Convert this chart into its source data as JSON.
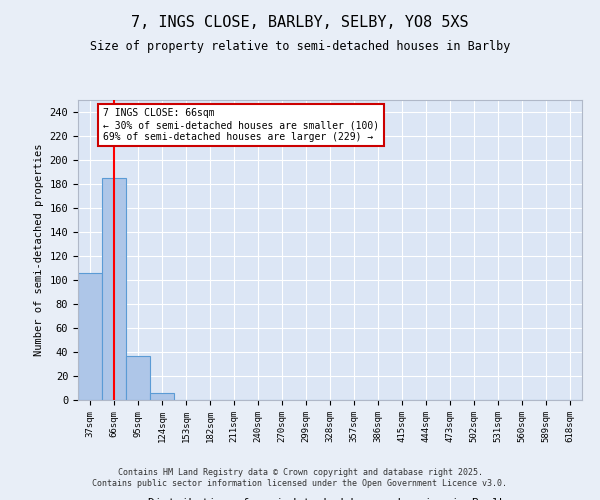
{
  "title": "7, INGS CLOSE, BARLBY, SELBY, YO8 5XS",
  "subtitle": "Size of property relative to semi-detached houses in Barlby",
  "xlabel": "Distribution of semi-detached houses by size in Barlby",
  "ylabel": "Number of semi-detached properties",
  "categories": [
    "37sqm",
    "66sqm",
    "95sqm",
    "124sqm",
    "153sqm",
    "182sqm",
    "211sqm",
    "240sqm",
    "270sqm",
    "299sqm",
    "328sqm",
    "357sqm",
    "386sqm",
    "415sqm",
    "444sqm",
    "473sqm",
    "502sqm",
    "531sqm",
    "560sqm",
    "589sqm",
    "618sqm"
  ],
  "values": [
    106,
    185,
    37,
    6,
    0,
    0,
    0,
    0,
    0,
    0,
    0,
    0,
    0,
    0,
    0,
    0,
    0,
    0,
    0,
    0,
    0
  ],
  "bar_color": "#aec6e8",
  "bar_edge_color": "#5b9bd5",
  "red_line_index": 1,
  "ylim": [
    0,
    250
  ],
  "yticks": [
    0,
    20,
    40,
    60,
    80,
    100,
    120,
    140,
    160,
    180,
    200,
    220,
    240
  ],
  "annotation_text": "7 INGS CLOSE: 66sqm\n← 30% of semi-detached houses are smaller (100)\n69% of semi-detached houses are larger (229) →",
  "annotation_box_color": "#ffffff",
  "annotation_box_edge": "#cc0000",
  "bg_color": "#dce6f5",
  "fig_bg_color": "#e8eef7",
  "footer_line1": "Contains HM Land Registry data © Crown copyright and database right 2025.",
  "footer_line2": "Contains public sector information licensed under the Open Government Licence v3.0."
}
